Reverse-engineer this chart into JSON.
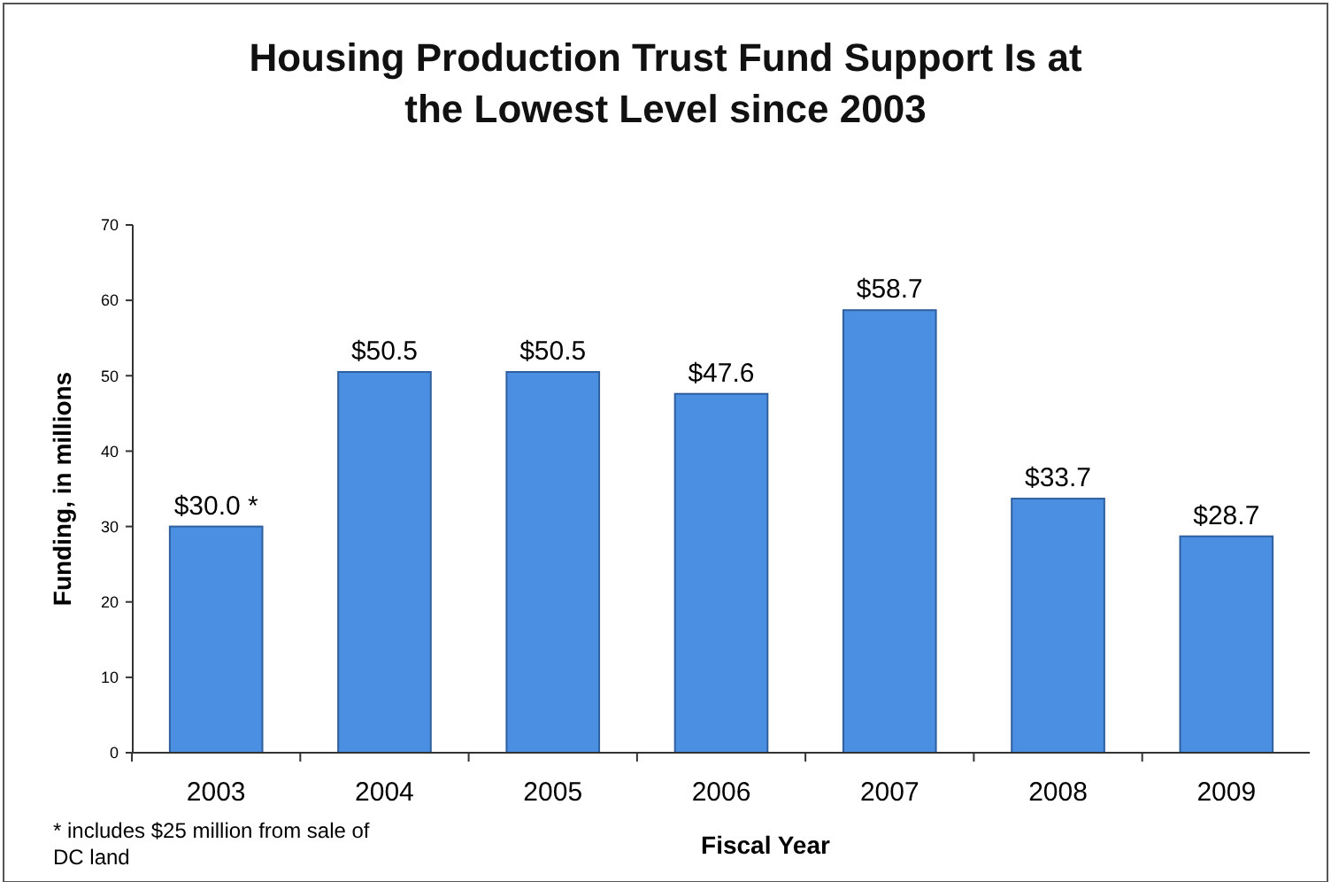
{
  "chart_data": {
    "type": "bar",
    "title": "Housing Production Trust Fund Support Is at the Lowest Level since 2003",
    "xlabel": "Fiscal Year",
    "ylabel": "Funding, in millions",
    "categories": [
      "2003",
      "2004",
      "2005",
      "2006",
      "2007",
      "2008",
      "2009"
    ],
    "values": [
      30.0,
      50.5,
      50.5,
      47.6,
      58.7,
      33.7,
      28.7
    ],
    "value_labels": [
      "$30.0 *",
      "$50.5",
      "$50.5",
      "$47.6",
      "$58.7",
      "$33.7",
      "$28.7"
    ],
    "color": "#4a8fe2",
    "ylim": [
      0,
      70
    ],
    "yticks": [
      0,
      10,
      20,
      30,
      40,
      50,
      60,
      70
    ],
    "annotations": [
      "* includes $25 million from sale of DC land"
    ]
  }
}
